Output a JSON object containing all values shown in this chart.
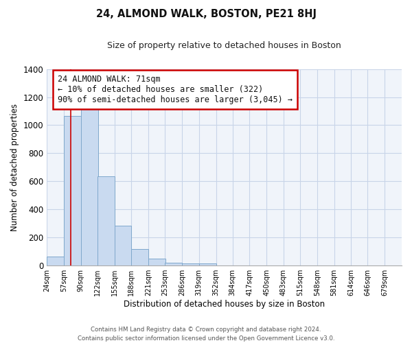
{
  "title": "24, ALMOND WALK, BOSTON, PE21 8HJ",
  "subtitle": "Size of property relative to detached houses in Boston",
  "xlabel": "Distribution of detached houses by size in Boston",
  "ylabel": "Number of detached properties",
  "bar_labels": [
    "24sqm",
    "57sqm",
    "90sqm",
    "122sqm",
    "155sqm",
    "188sqm",
    "221sqm",
    "253sqm",
    "286sqm",
    "319sqm",
    "352sqm",
    "384sqm",
    "417sqm",
    "450sqm",
    "483sqm",
    "515sqm",
    "548sqm",
    "581sqm",
    "614sqm",
    "646sqm",
    "679sqm"
  ],
  "bar_values": [
    65,
    1065,
    1150,
    635,
    285,
    120,
    48,
    22,
    18,
    15,
    0,
    0,
    0,
    0,
    0,
    0,
    0,
    0,
    0,
    0,
    0
  ],
  "bar_color": "#c9daf0",
  "bar_edge_color": "#7fa8cc",
  "grid_color": "#d0dce8",
  "annotation_border_color": "#cc0000",
  "annotation_text_line1": "24 ALMOND WALK: 71sqm",
  "annotation_text_line2": "← 10% of detached houses are smaller (322)",
  "annotation_text_line3": "90% of semi-detached houses are larger (3,045) →",
  "redline_x": 71,
  "ylim": [
    0,
    1400
  ],
  "yticks": [
    0,
    200,
    400,
    600,
    800,
    1000,
    1200,
    1400
  ],
  "footer_line1": "Contains HM Land Registry data © Crown copyright and database right 2024.",
  "footer_line2": "Contains public sector information licensed under the Open Government Licence v3.0."
}
